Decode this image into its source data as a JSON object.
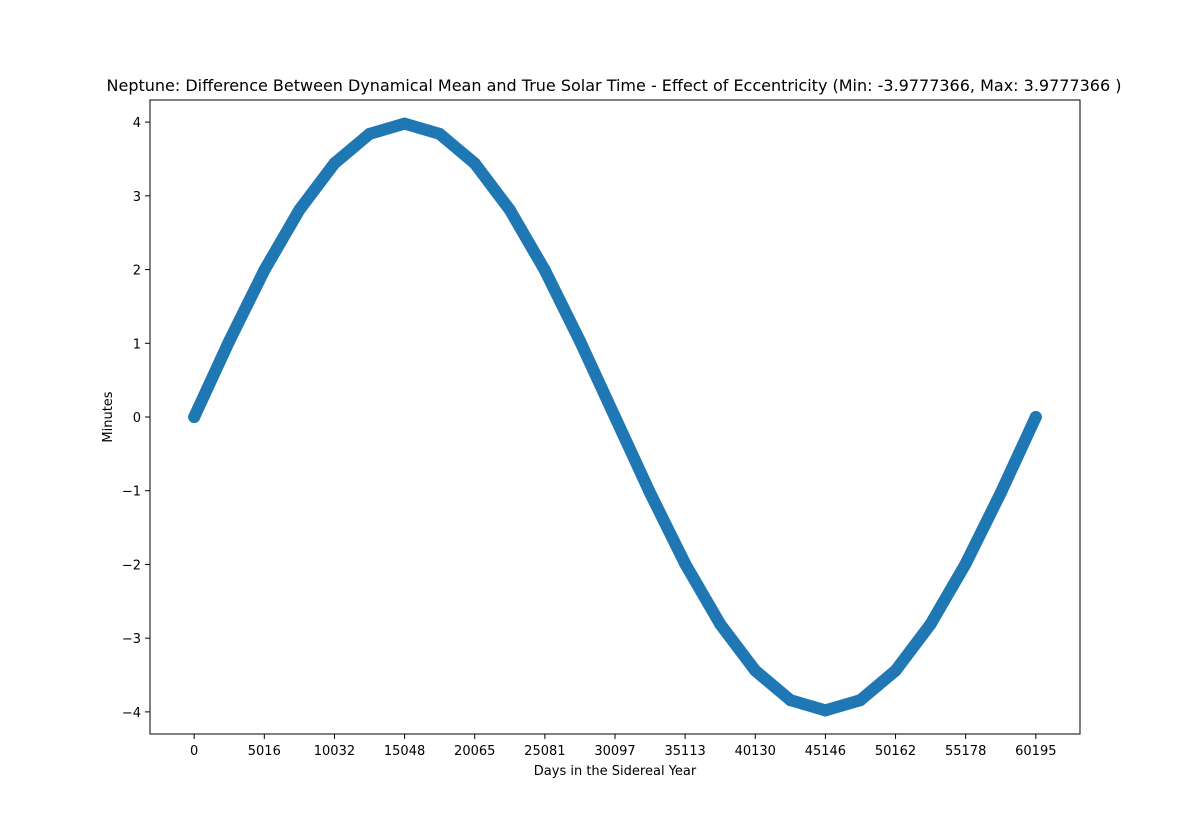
{
  "chart_data": {
    "type": "scatter",
    "title": "Neptune: Difference Between Dynamical Mean and True Solar Time - Effect of Eccentricity (Min: -3.9777366, Max: 3.9777366 )",
    "xlabel": "Days in the Sidereal Year",
    "ylabel": "Minutes",
    "xlim": [
      -3160,
      63355
    ],
    "ylim": [
      -4.3,
      4.3
    ],
    "x_ticks": [
      0,
      5016,
      10032,
      15048,
      20065,
      25081,
      30097,
      35113,
      40130,
      45146,
      50162,
      55178,
      60195
    ],
    "y_ticks": [
      4,
      3,
      2,
      1,
      0,
      -1,
      -2,
      -3,
      -4
    ],
    "y_tick_labels": [
      "4",
      "3",
      "2",
      "1",
      "0",
      "−1",
      "−2",
      "−3",
      "−4"
    ],
    "grid": false,
    "legend": "none",
    "series": [
      {
        "color": "#1f77b4",
        "x": [
          0,
          2508,
          5016,
          7524,
          10032,
          12540,
          15048,
          17556,
          20065,
          22573,
          25081,
          27589,
          30097,
          32605,
          35113,
          37621,
          40130,
          42638,
          45146,
          47654,
          50162,
          52670,
          55178,
          57686,
          60195
        ],
        "y": [
          0.0,
          1.03,
          1.99,
          2.81,
          3.44,
          3.84,
          3.98,
          3.84,
          3.44,
          2.81,
          1.99,
          1.03,
          0.0,
          -1.03,
          -1.99,
          -2.81,
          -3.44,
          -3.84,
          -3.98,
          -3.84,
          -3.44,
          -2.81,
          -1.99,
          -1.03,
          0.0
        ]
      }
    ]
  }
}
